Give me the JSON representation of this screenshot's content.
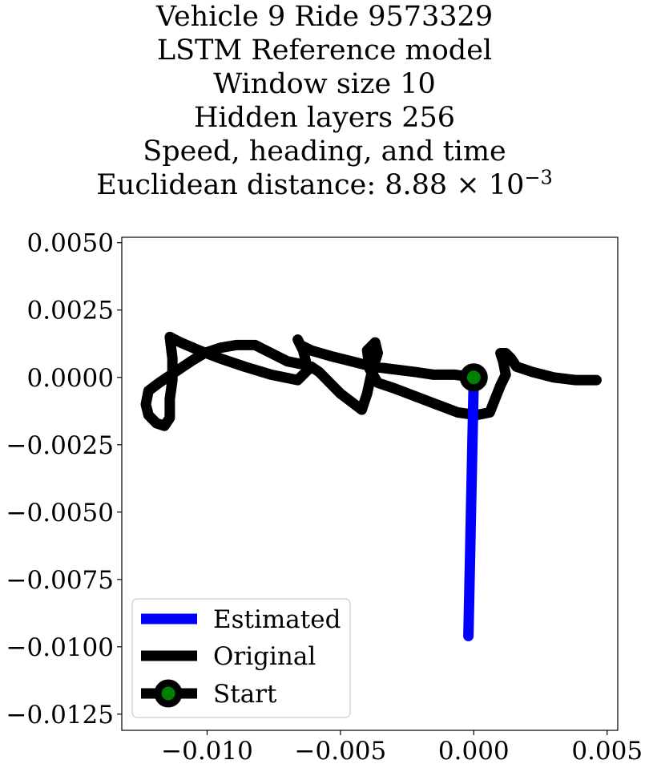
{
  "title_lines": [
    "Vehicle 9 Ride 9573329",
    "LSTM Reference model",
    "Window size 10",
    "Hidden layers 256",
    "Speed, heading, and time"
  ],
  "metric": {
    "label": "Euclidean distance: ",
    "mantissa": "8.88",
    "times": "×",
    "base": "10",
    "exponent": "−3"
  },
  "chart_data": {
    "type": "line",
    "xlim": [
      -0.0132,
      0.0054
    ],
    "ylim": [
      -0.0131,
      0.0052
    ],
    "x_ticks": [
      -0.01,
      -0.005,
      0.0,
      0.005
    ],
    "x_tick_labels": [
      "−0.010",
      "−0.005",
      "0.000",
      "0.005"
    ],
    "y_ticks": [
      0.005,
      0.0025,
      0.0,
      -0.0025,
      -0.005,
      -0.0075,
      -0.01,
      -0.0125
    ],
    "y_tick_labels": [
      "0.0050",
      "0.0025",
      "0.0000",
      "−0.0025",
      "−0.0050",
      "−0.0075",
      "−0.0100",
      "−0.0125"
    ],
    "grid": false,
    "legend_position": "lower-left",
    "series": [
      {
        "name": "Estimated",
        "color": "#0000ff",
        "points": [
          [
            0.0,
            0.0
          ],
          [
            -0.0002,
            -0.0096
          ]
        ]
      },
      {
        "name": "Original",
        "color": "#000000",
        "points": [
          [
            0.0,
            0.0
          ],
          [
            -0.0007,
            0.0001
          ],
          [
            -0.0015,
            0.0001
          ],
          [
            -0.0022,
            0.0002
          ],
          [
            -0.003,
            0.0003
          ],
          [
            -0.0038,
            0.0004
          ],
          [
            -0.0046,
            0.0006
          ],
          [
            -0.0054,
            0.0008
          ],
          [
            -0.0061,
            0.001
          ],
          [
            -0.0065,
            0.0012
          ],
          [
            -0.0066,
            0.0014
          ],
          [
            -0.0064,
            0.001
          ],
          [
            -0.0063,
            0.0006
          ],
          [
            -0.0065,
            0.0005
          ],
          [
            -0.007,
            0.0006
          ],
          [
            -0.0076,
            0.0009
          ],
          [
            -0.0082,
            0.0012
          ],
          [
            -0.0089,
            0.0012
          ],
          [
            -0.0095,
            0.0011
          ],
          [
            -0.0101,
            0.0009
          ],
          [
            -0.0106,
            0.0006
          ],
          [
            -0.0112,
            0.0002
          ],
          [
            -0.0118,
            -0.0002
          ],
          [
            -0.0122,
            -0.0005
          ],
          [
            -0.0123,
            -0.001
          ],
          [
            -0.0122,
            -0.0014
          ],
          [
            -0.0119,
            -0.0017
          ],
          [
            -0.0116,
            -0.0018
          ],
          [
            -0.0114,
            -0.0015
          ],
          [
            -0.0114,
            -0.0008
          ],
          [
            -0.0113,
            -0.0001
          ],
          [
            -0.0113,
            0.0007
          ],
          [
            -0.0114,
            0.0015
          ],
          [
            -0.011,
            0.0013
          ],
          [
            -0.0103,
            0.001
          ],
          [
            -0.0095,
            0.0007
          ],
          [
            -0.0086,
            0.0004
          ],
          [
            -0.0076,
            0.0001
          ],
          [
            -0.0066,
            -0.0001
          ],
          [
            -0.0061,
            0.0004
          ],
          [
            -0.0058,
            0.0002
          ],
          [
            -0.0054,
            -0.0002
          ],
          [
            -0.005,
            -0.0006
          ],
          [
            -0.0046,
            -0.0009
          ],
          [
            -0.0042,
            -0.0012
          ],
          [
            -0.004,
            -0.0006
          ],
          [
            -0.0038,
            0.0003
          ],
          [
            -0.0036,
            0.0009
          ],
          [
            -0.0037,
            0.0013
          ],
          [
            -0.004,
            0.001
          ],
          [
            -0.0039,
            0.0003
          ],
          [
            -0.0036,
            -0.0002
          ],
          [
            -0.003,
            -0.0004
          ],
          [
            -0.0022,
            -0.0007
          ],
          [
            -0.0014,
            -0.001
          ],
          [
            -0.0006,
            -0.0013
          ],
          [
            0.0001,
            -0.0014
          ],
          [
            0.0006,
            -0.0013
          ],
          [
            0.0008,
            -0.0008
          ],
          [
            0.001,
            -0.0003
          ],
          [
            0.0012,
            0.0001
          ],
          [
            0.0011,
            0.0006
          ],
          [
            0.001,
            0.0009
          ],
          [
            0.0012,
            0.0009
          ],
          [
            0.0014,
            0.0007
          ],
          [
            0.0016,
            0.0004
          ],
          [
            0.0022,
            0.0002
          ],
          [
            0.003,
            0.0
          ],
          [
            0.0038,
            -0.0001
          ],
          [
            0.0046,
            -0.0001
          ]
        ]
      }
    ],
    "start": {
      "name": "Start",
      "point": [
        0.0,
        0.0
      ],
      "marker_edge_color": "#000000",
      "marker_face_color": "#008000"
    }
  }
}
